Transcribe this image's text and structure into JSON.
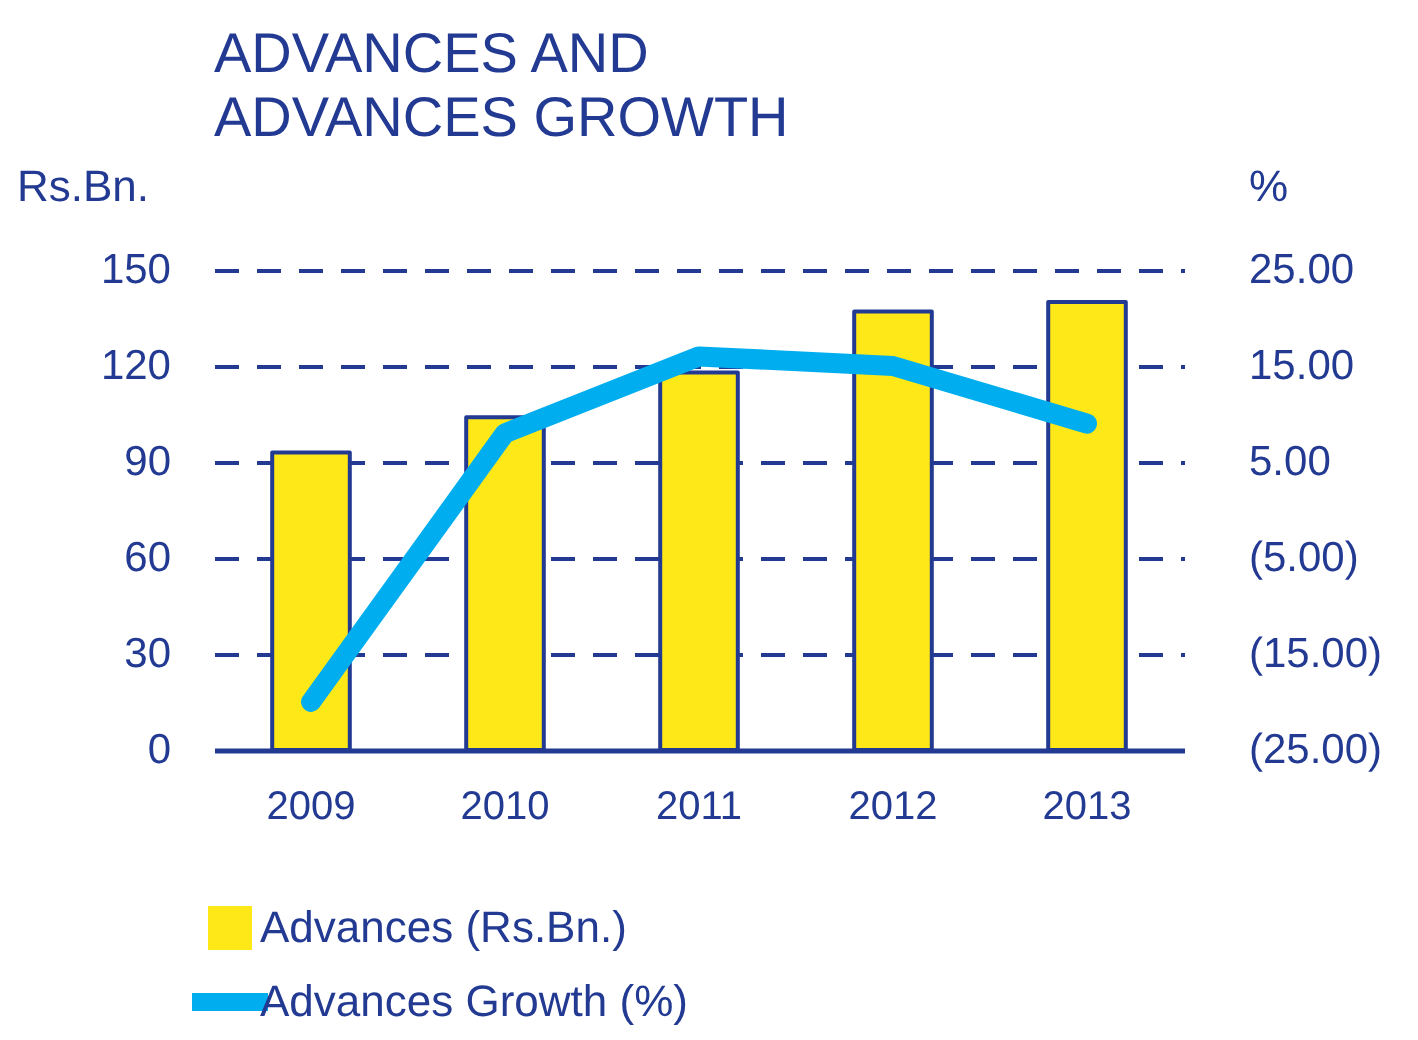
{
  "chart_data": {
    "type": "bar",
    "title": "ADVANCES AND\nADVANCES GROWTH",
    "ylabel": "Rs.Bn.",
    "y2label": "%",
    "categories": [
      "2009",
      "2010",
      "2011",
      "2012",
      "2013"
    ],
    "series": [
      {
        "name": "Advances (Rs.Bn.)",
        "color": "#ffe817",
        "values": [
          93,
          104,
          118,
          137,
          140
        ]
      },
      {
        "name": "Advances Growth (%)",
        "type": "line",
        "color": "#00aeef",
        "axis": "y2",
        "values": [
          -20,
          8,
          16,
          15,
          9
        ]
      }
    ],
    "ylim": [
      0,
      150
    ],
    "yticks": [
      0,
      30,
      60,
      90,
      120,
      150
    ],
    "y2lim": [
      -25,
      25
    ],
    "y2ticks": [
      {
        "value": -25,
        "label": "(25.00)"
      },
      {
        "value": -15,
        "label": "(15.00)"
      },
      {
        "value": -5,
        "label": "(5.00)"
      },
      {
        "value": 5,
        "label": "5.00"
      },
      {
        "value": 15,
        "label": "15.00"
      },
      {
        "value": 25,
        "label": "25.00"
      }
    ],
    "grid": "y",
    "legend": "bottom"
  }
}
